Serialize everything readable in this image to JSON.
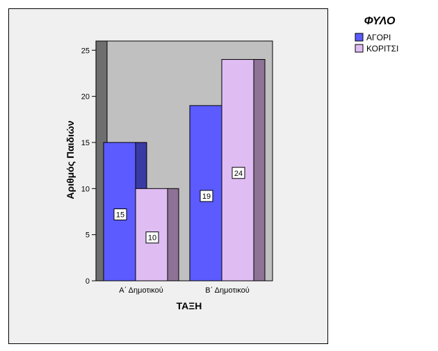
{
  "chart_data": {
    "type": "bar",
    "categories": [
      "Α΄ Δημοτικού",
      "Β΄ Δημοτικού"
    ],
    "series": [
      {
        "name": "ΑΓΟΡΙ",
        "values": [
          15,
          19
        ],
        "color": "#5b5bff",
        "shadow": "#3a3aa5"
      },
      {
        "name": "ΚΟΡΙΤΣΙ",
        "values": [
          10,
          24
        ],
        "color": "#dfbdf3",
        "shadow": "#8e7396"
      }
    ],
    "xlabel": "ΤΑΞΗ",
    "ylabel": "Αριθμός Παιδιών",
    "ylim": [
      0,
      26
    ],
    "yticks": [
      0,
      5,
      10,
      15,
      20,
      25
    ],
    "legend_title": "ΦΥΛΟ",
    "legend_position": "top-right",
    "colors": {
      "plot_background": "#c0c0c0",
      "frame_background": "#f0f0f0",
      "wall": "#6e6e6e"
    }
  }
}
